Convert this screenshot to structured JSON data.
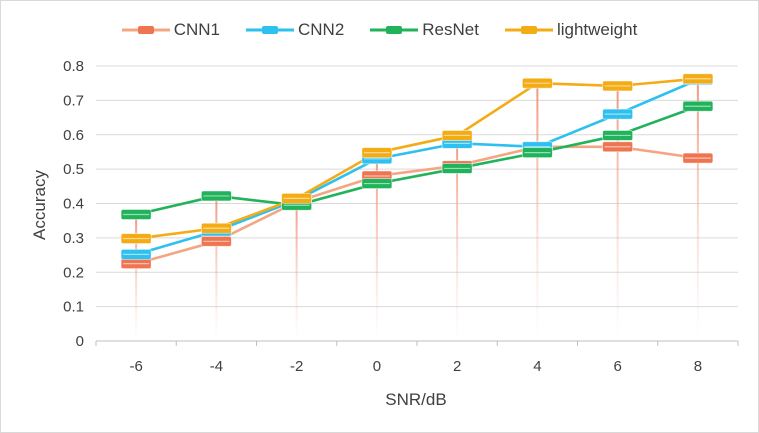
{
  "chart_data": {
    "type": "line",
    "title": "",
    "xlabel": "SNR/dB",
    "ylabel": "Accuracy",
    "x": [
      -6,
      -4,
      -2,
      0,
      2,
      4,
      6,
      8
    ],
    "x_tick_labels": [
      "-6",
      "-4",
      "-2",
      "0",
      "2",
      "4",
      "6",
      "8"
    ],
    "ylim": [
      0,
      0.8
    ],
    "y_ticks": [
      0,
      0.1,
      0.2,
      0.3,
      0.4,
      0.5,
      0.6,
      0.7,
      0.8
    ],
    "y_tick_labels": [
      "0",
      "0.1",
      "0.2",
      "0.3",
      "0.4",
      "0.5",
      "0.6",
      "0.7",
      "0.8"
    ],
    "grid": "horizontal",
    "legend_position": "top-center",
    "drop_lines": true,
    "series": [
      {
        "name": "CNN1",
        "color": "#f4a582",
        "marker_color": "#ef7552",
        "values": [
          0.225,
          0.29,
          0.405,
          0.48,
          0.51,
          0.565,
          0.565,
          0.532
        ]
      },
      {
        "name": "CNN2",
        "color": "#2ec0ee",
        "marker_color": "#2ec0ee",
        "values": [
          0.252,
          0.32,
          0.41,
          0.53,
          0.575,
          0.565,
          0.66,
          0.76
        ]
      },
      {
        "name": "ResNet",
        "color": "#21b35b",
        "marker_color": "#21b35b",
        "values": [
          0.368,
          0.422,
          0.395,
          0.458,
          0.502,
          0.548,
          0.598,
          0.683
        ]
      },
      {
        "name": "lightweight",
        "color": "#f4ac16",
        "marker_color": "#f4ac16",
        "values": [
          0.298,
          0.328,
          0.415,
          0.548,
          0.598,
          0.75,
          0.742,
          0.763
        ]
      }
    ]
  }
}
